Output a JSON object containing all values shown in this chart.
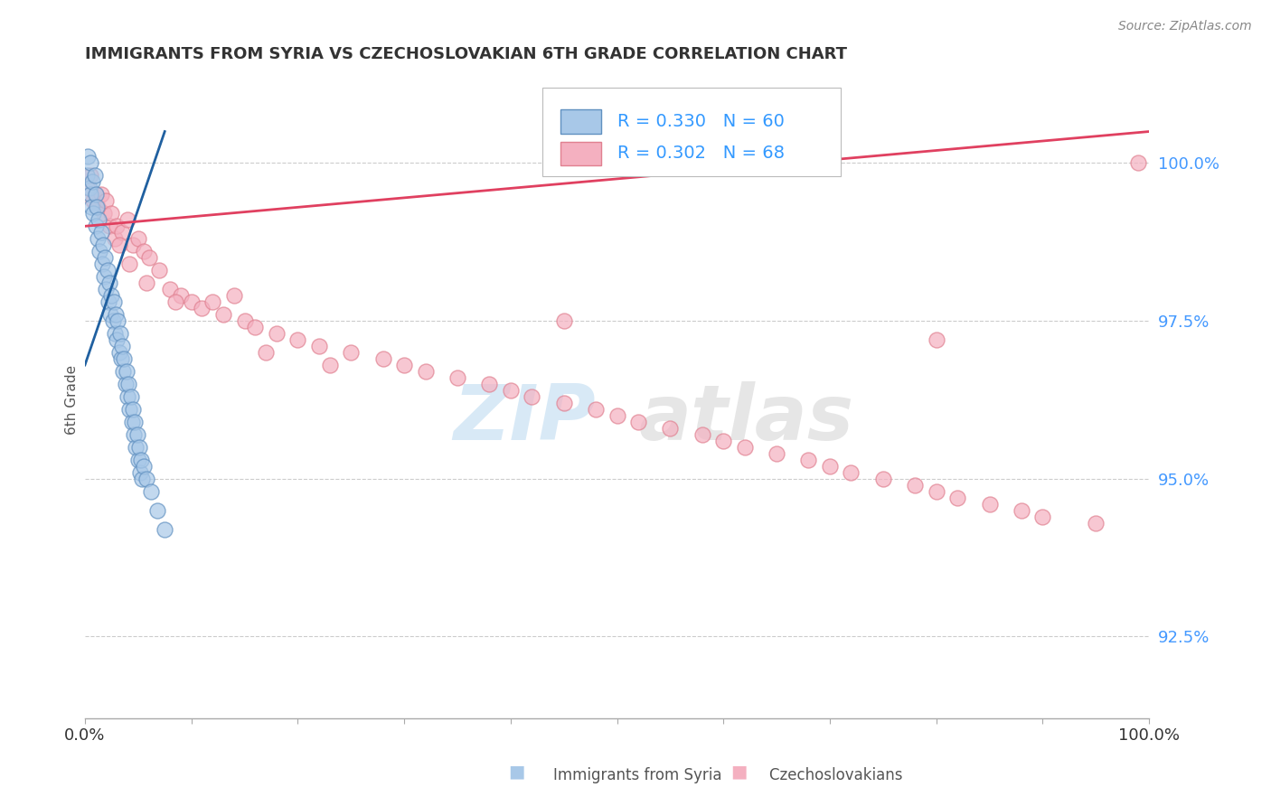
{
  "title": "IMMIGRANTS FROM SYRIA VS CZECHOSLOVAKIAN 6TH GRADE CORRELATION CHART",
  "source_text": "Source: ZipAtlas.com",
  "ylabel_label": "6th Grade",
  "xmin": 0.0,
  "xmax": 100.0,
  "ymin": 91.2,
  "ymax": 101.3,
  "legend_items": [
    {
      "label": "Immigrants from Syria",
      "color": "#a8c8e8",
      "R": 0.33,
      "N": 60
    },
    {
      "label": "Czechoslovakians",
      "color": "#f4b0c0",
      "R": 0.302,
      "N": 68
    }
  ],
  "blue_scatter_x": [
    0.2,
    0.3,
    0.4,
    0.5,
    0.5,
    0.6,
    0.7,
    0.8,
    0.9,
    1.0,
    1.0,
    1.1,
    1.2,
    1.3,
    1.4,
    1.5,
    1.6,
    1.7,
    1.8,
    1.9,
    2.0,
    2.1,
    2.2,
    2.3,
    2.4,
    2.5,
    2.6,
    2.7,
    2.8,
    2.9,
    3.0,
    3.1,
    3.2,
    3.3,
    3.4,
    3.5,
    3.6,
    3.7,
    3.8,
    3.9,
    4.0,
    4.1,
    4.2,
    4.3,
    4.4,
    4.5,
    4.6,
    4.7,
    4.8,
    4.9,
    5.0,
    5.1,
    5.2,
    5.3,
    5.4,
    5.5,
    5.8,
    6.2,
    6.8,
    7.5
  ],
  "blue_scatter_y": [
    99.8,
    100.1,
    99.6,
    99.5,
    100.0,
    99.3,
    99.7,
    99.2,
    99.8,
    99.5,
    99.0,
    99.3,
    98.8,
    99.1,
    98.6,
    98.9,
    98.4,
    98.7,
    98.2,
    98.5,
    98.0,
    98.3,
    97.8,
    98.1,
    97.6,
    97.9,
    97.5,
    97.8,
    97.3,
    97.6,
    97.2,
    97.5,
    97.0,
    97.3,
    96.9,
    97.1,
    96.7,
    96.9,
    96.5,
    96.7,
    96.3,
    96.5,
    96.1,
    96.3,
    95.9,
    96.1,
    95.7,
    95.9,
    95.5,
    95.7,
    95.3,
    95.5,
    95.1,
    95.3,
    95.0,
    95.2,
    95.0,
    94.8,
    94.5,
    94.2
  ],
  "pink_scatter_x": [
    0.3,
    0.5,
    0.8,
    1.0,
    1.2,
    1.5,
    1.8,
    2.0,
    2.3,
    2.5,
    2.8,
    3.0,
    3.5,
    4.0,
    4.5,
    5.0,
    5.5,
    6.0,
    7.0,
    8.0,
    9.0,
    10.0,
    11.0,
    12.0,
    13.0,
    14.0,
    15.0,
    16.0,
    18.0,
    20.0,
    22.0,
    25.0,
    28.0,
    30.0,
    32.0,
    35.0,
    38.0,
    40.0,
    42.0,
    45.0,
    48.0,
    50.0,
    52.0,
    55.0,
    58.0,
    60.0,
    62.0,
    65.0,
    68.0,
    70.0,
    72.0,
    75.0,
    78.0,
    80.0,
    82.0,
    85.0,
    88.0,
    90.0,
    95.0,
    99.0,
    3.2,
    4.2,
    5.8,
    8.5,
    17.0,
    23.0,
    45.0,
    80.0
  ],
  "pink_scatter_y": [
    99.6,
    99.8,
    99.4,
    99.5,
    99.3,
    99.5,
    99.2,
    99.4,
    99.0,
    99.2,
    98.8,
    99.0,
    98.9,
    99.1,
    98.7,
    98.8,
    98.6,
    98.5,
    98.3,
    98.0,
    97.9,
    97.8,
    97.7,
    97.8,
    97.6,
    97.9,
    97.5,
    97.4,
    97.3,
    97.2,
    97.1,
    97.0,
    96.9,
    96.8,
    96.7,
    96.6,
    96.5,
    96.4,
    96.3,
    96.2,
    96.1,
    96.0,
    95.9,
    95.8,
    95.7,
    95.6,
    95.5,
    95.4,
    95.3,
    95.2,
    95.1,
    95.0,
    94.9,
    94.8,
    94.7,
    94.6,
    94.5,
    94.4,
    94.3,
    100.0,
    98.7,
    98.4,
    98.1,
    97.8,
    97.0,
    96.8,
    97.5,
    97.2
  ],
  "blue_line_x": [
    0.0,
    7.5
  ],
  "blue_line_y": [
    96.8,
    100.5
  ],
  "pink_line_x": [
    0.0,
    100.0
  ],
  "pink_line_y": [
    99.0,
    100.5
  ],
  "watermark_zip": "ZIP",
  "watermark_atlas": "atlas",
  "title_color": "#333333",
  "blue_color": "#a8c8e8",
  "pink_color": "#f4b0c0",
  "blue_edge_color": "#6090c0",
  "pink_edge_color": "#e08090",
  "blue_line_color": "#2060a0",
  "pink_line_color": "#e04060",
  "legend_R_color": "#3399ff",
  "ytick_color": "#4499ff",
  "xtick_color": "#333333",
  "grid_color": "#cccccc",
  "ytick_labels": [
    "92.5%",
    "95.0%",
    "97.5%",
    "100.0%"
  ],
  "ytick_values": [
    92.5,
    95.0,
    97.5,
    100.0
  ]
}
